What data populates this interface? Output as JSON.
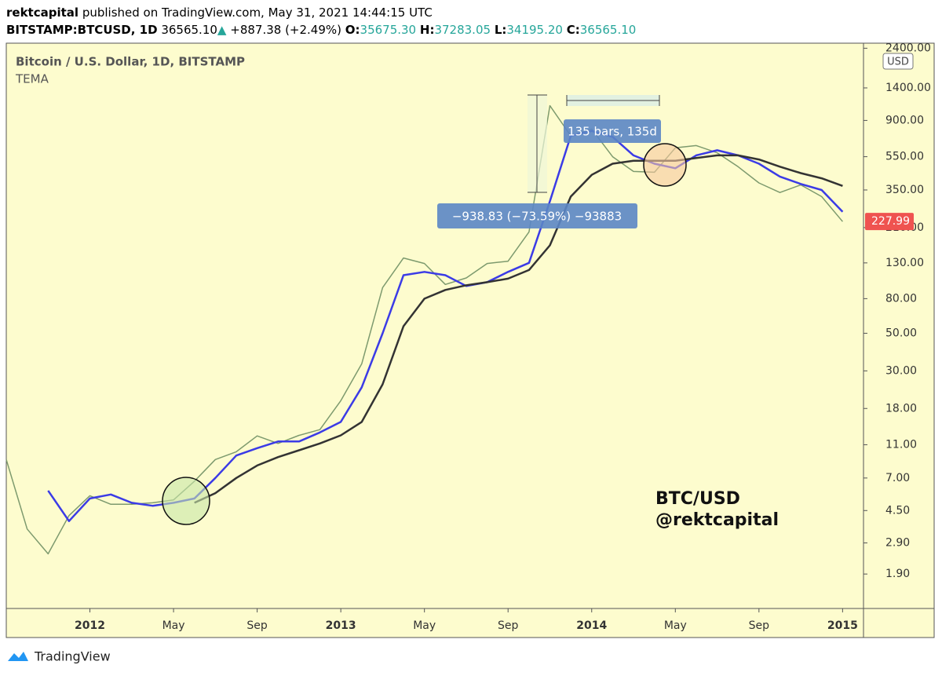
{
  "header": {
    "author": "rektcapital",
    "published": "published on TradingView.com, May 31, 2021 14:44:15 UTC",
    "symbol": "BITSTAMP:BTCUSD, 1D",
    "price": "36565.10",
    "arrow": "▲",
    "change": "+887.38 (+2.49%)",
    "quote": [
      {
        "key": "O:",
        "value": "35675.30"
      },
      {
        "key": "H:",
        "value": "37283.05"
      },
      {
        "key": "L:",
        "value": "34195.20"
      },
      {
        "key": "C:",
        "value": "36565.10"
      }
    ]
  },
  "chart_data": {
    "type": "line",
    "title": "Bitcoin / U.S. Dollar, 1D, BITSTAMP",
    "indicator": "TEMA",
    "currency": "USD",
    "log_scale": true,
    "grid": false,
    "x": [
      "2011-09",
      "2011-10",
      "2011-11",
      "2011-12",
      "2012-01",
      "2012-02",
      "2012-03",
      "2012-04",
      "2012-05",
      "2012-06",
      "2012-07",
      "2012-08",
      "2012-09",
      "2012-10",
      "2012-11",
      "2012-12",
      "2013-01",
      "2013-02",
      "2013-03",
      "2013-04",
      "2013-05",
      "2013-06",
      "2013-07",
      "2013-08",
      "2013-09",
      "2013-10",
      "2013-11",
      "2013-12",
      "2014-01",
      "2014-02",
      "2014-03",
      "2014-04",
      "2014-05",
      "2014-06",
      "2014-07",
      "2014-08",
      "2014-09",
      "2014-10",
      "2014-11",
      "2014-12",
      "2015-01"
    ],
    "series": [
      {
        "color": "#7d9a6e",
        "values": [
          9,
          3.5,
          2.5,
          4.2,
          5.5,
          4.9,
          4.9,
          5.0,
          5.2,
          6.7,
          9.0,
          10.0,
          12.4,
          11.2,
          12.5,
          13.5,
          20,
          33,
          93,
          139,
          129,
          97,
          106,
          129,
          133,
          198,
          1100,
          730,
          800,
          550,
          450,
          445,
          620,
          640,
          580,
          480,
          385,
          338,
          375,
          320,
          228
        ]
      },
      {
        "color": "#3b3be6",
        "values": [
          null,
          null,
          5.9,
          3.9,
          5.3,
          5.6,
          5.0,
          4.8,
          5.0,
          5.3,
          7.0,
          9.5,
          10.5,
          11.5,
          11.5,
          13.0,
          15,
          24,
          50,
          110,
          115,
          110,
          95,
          100,
          115,
          130,
          300,
          730,
          780,
          720,
          560,
          500,
          470,
          560,
          600,
          560,
          500,
          420,
          380,
          350,
          260
        ]
      },
      {
        "color": "#333333",
        "values": [
          null,
          null,
          null,
          null,
          null,
          null,
          null,
          null,
          null,
          5.0,
          5.7,
          7.0,
          8.3,
          9.3,
          10.2,
          11.2,
          12.5,
          15,
          25,
          55,
          80,
          90,
          96,
          100,
          105,
          118,
          165,
          320,
          430,
          500,
          520,
          520,
          520,
          540,
          560,
          560,
          530,
          480,
          440,
          410,
          370
        ]
      }
    ],
    "xlim": [
      "2011-09",
      "2015-02"
    ],
    "xticks": [
      {
        "value": "2012-01",
        "label": "2012"
      },
      {
        "value": "2012-05",
        "label": "May"
      },
      {
        "value": "2012-09",
        "label": "Sep"
      },
      {
        "value": "2013-01",
        "label": "2013"
      },
      {
        "value": "2013-05",
        "label": "May"
      },
      {
        "value": "2013-09",
        "label": "Sep"
      },
      {
        "value": "2014-01",
        "label": "2014"
      },
      {
        "value": "2014-05",
        "label": "May"
      },
      {
        "value": "2014-09",
        "label": "Sep"
      },
      {
        "value": "2015-01",
        "label": "2015"
      }
    ],
    "ylim": [
      1.19,
      2570
    ],
    "yticks": [
      {
        "value": 1.9,
        "label": "1.90"
      },
      {
        "value": 2.9,
        "label": "2.90"
      },
      {
        "value": 4.5,
        "label": "4.50"
      },
      {
        "value": 7,
        "label": "7.00"
      },
      {
        "value": 11,
        "label": "11.00"
      },
      {
        "value": 18,
        "label": "18.00"
      },
      {
        "value": 30,
        "label": "30.00"
      },
      {
        "value": 50,
        "label": "50.00"
      },
      {
        "value": 80,
        "label": "80.00"
      },
      {
        "value": 130,
        "label": "130.00"
      },
      {
        "value": 210,
        "label": "210.00"
      },
      {
        "value": 350,
        "label": "350.00"
      },
      {
        "value": 550,
        "label": "550.00"
      },
      {
        "value": 900,
        "label": "900.00"
      },
      {
        "value": 1400,
        "label": "1400.00"
      },
      {
        "value": 2400,
        "label": "2400.00"
      }
    ],
    "last_price": 227.99,
    "annotations": [
      "135 bars, 135d",
      "−938.83 (−73.59%) −93883",
      "BTC/USD",
      "@rektcapital"
    ]
  },
  "footer": "TradingView"
}
